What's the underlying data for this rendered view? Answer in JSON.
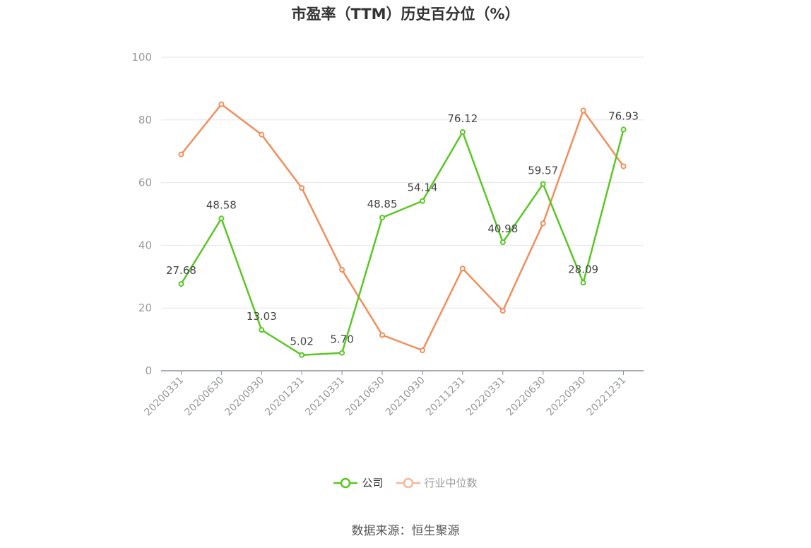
{
  "title": "市盈率（TTM）历史百分位（%）",
  "source": "数据来源：恒生聚源",
  "chart_data": {
    "type": "line",
    "title": "市盈率（TTM）历史百分位（%）",
    "categories": [
      "20200331",
      "20200630",
      "20200930",
      "20201231",
      "20210331",
      "20210630",
      "20210930",
      "20211231",
      "20220331",
      "20220630",
      "20220930",
      "20221231"
    ],
    "ylim": [
      0,
      100
    ],
    "yticks": [
      0,
      20,
      40,
      60,
      80,
      100
    ],
    "grid": true,
    "legend_position": "bottom",
    "series": [
      {
        "name": "公司",
        "color": "#5ac725",
        "show_labels": true,
        "values": [
          27.68,
          48.58,
          13.03,
          5.02,
          5.7,
          48.85,
          54.14,
          76.12,
          40.98,
          59.57,
          28.09,
          76.93
        ]
      },
      {
        "name": "行业中位数",
        "color": "#f28e5b",
        "show_labels": false,
        "values": [
          69,
          85,
          75.3,
          58.3,
          32.2,
          11.4,
          6.5,
          32.6,
          19.1,
          47,
          83,
          65.2
        ]
      }
    ]
  }
}
